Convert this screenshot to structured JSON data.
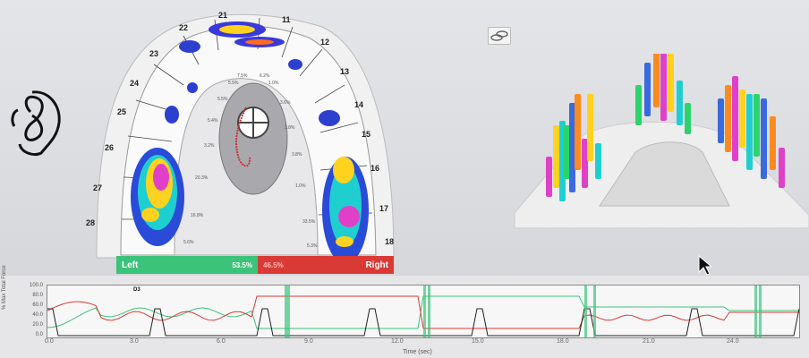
{
  "arch": {
    "tooth_numbers": [
      "21",
      "11",
      "22",
      "12",
      "23",
      "13",
      "24",
      "14",
      "25",
      "15",
      "26",
      "16",
      "27",
      "17",
      "28",
      "18"
    ],
    "percent_labels": [
      "7.5%",
      "6.2%",
      "5.5%",
      "1.0%",
      "5.5%",
      "3.6%",
      "5.4%",
      "3.8%",
      "3.2%",
      "3.8%",
      "20.3%",
      "1.0%",
      "16.8%",
      "33.5%",
      "5.6%",
      "5.3%"
    ]
  },
  "force_bar": {
    "left_label": "Left",
    "left_value": "53.5%",
    "right_value": "46.5%",
    "right_label": "Right"
  },
  "timeline": {
    "y_axis_title": "% Max Total Force",
    "y_ticks": [
      "100.0",
      "80.0",
      "60.0",
      "40.0",
      "20.0",
      "0.0"
    ],
    "x_ticks": [
      "0.0",
      "3.0",
      "6.0",
      "9.0",
      "12.0",
      "15.0",
      "18.0",
      "21.0",
      "24.0"
    ],
    "x_axis_title": "Time (sec)",
    "marker": "D3"
  },
  "icons": {
    "ear": "ear-sketch-icon",
    "toggle": "toggle-view-icon",
    "cursor": "mouse-pointer-icon"
  },
  "colors": {
    "left": "#3cc37a",
    "right": "#d93a35",
    "total": "#222222"
  }
}
